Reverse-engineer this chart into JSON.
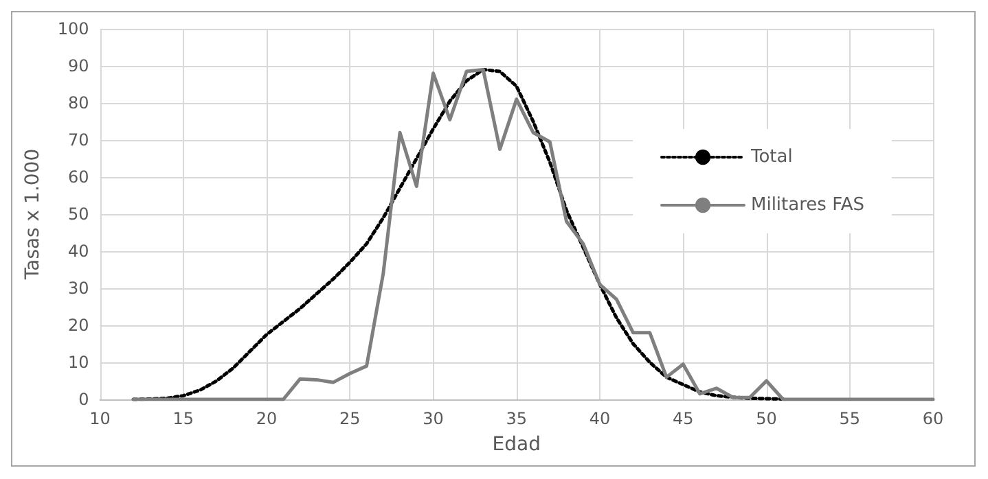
{
  "chart_data": {
    "type": "line",
    "xlabel": "Edad",
    "ylabel": "Tasas x 1.000",
    "xlim": [
      10,
      60
    ],
    "xticks": [
      10,
      15,
      20,
      25,
      30,
      35,
      40,
      45,
      50,
      55,
      60
    ],
    "ylim": [
      0,
      100
    ],
    "yticks": [
      0,
      10,
      20,
      30,
      40,
      50,
      60,
      70,
      80,
      90,
      100
    ],
    "grid": true,
    "legend": "right",
    "marker": "none",
    "series": [
      {
        "name": "Total",
        "color": "#000000",
        "line_style": "dotted",
        "x": [
          12,
          13,
          14,
          15,
          16,
          17,
          18,
          19,
          20,
          21,
          22,
          23,
          24,
          25,
          26,
          27,
          28,
          29,
          30,
          31,
          32,
          33,
          34,
          35,
          36,
          37,
          38,
          39,
          40,
          41,
          42,
          43,
          44,
          45,
          46,
          47,
          48,
          49,
          50,
          51
        ],
        "values": [
          0,
          0.1,
          0.3,
          1,
          2.5,
          5,
          8.5,
          13,
          17.5,
          21,
          24.5,
          28.5,
          32.5,
          37,
          42,
          49,
          57,
          65,
          73,
          80.5,
          86,
          89,
          88.5,
          84.5,
          75,
          64,
          51,
          41,
          31,
          22,
          15,
          10,
          6,
          4,
          2,
          1,
          0.6,
          0.3,
          0.2,
          0.1
        ]
      },
      {
        "name": "Militares FAS",
        "color": "#7f7f7f",
        "line_style": "solid",
        "x": [
          12,
          13,
          14,
          15,
          16,
          17,
          18,
          19,
          20,
          21,
          22,
          23,
          24,
          25,
          26,
          27,
          28,
          29,
          30,
          31,
          32,
          33,
          34,
          35,
          36,
          37,
          38,
          39,
          40,
          41,
          42,
          43,
          44,
          45,
          46,
          47,
          48,
          49,
          50,
          51,
          52,
          53,
          54,
          55,
          56,
          57,
          58,
          59,
          60
        ],
        "values": [
          0,
          0,
          0,
          0,
          0,
          0,
          0,
          0,
          0,
          0,
          5.5,
          5.3,
          4.6,
          7,
          9,
          34,
          72,
          57.5,
          88,
          75.5,
          88.5,
          89,
          67.5,
          81,
          72,
          69.5,
          48,
          42,
          31,
          27,
          18,
          18,
          6,
          9.5,
          1.5,
          3,
          0.5,
          0.5,
          5,
          0,
          0,
          0,
          0,
          0,
          0,
          0,
          0,
          0,
          0
        ]
      }
    ]
  }
}
